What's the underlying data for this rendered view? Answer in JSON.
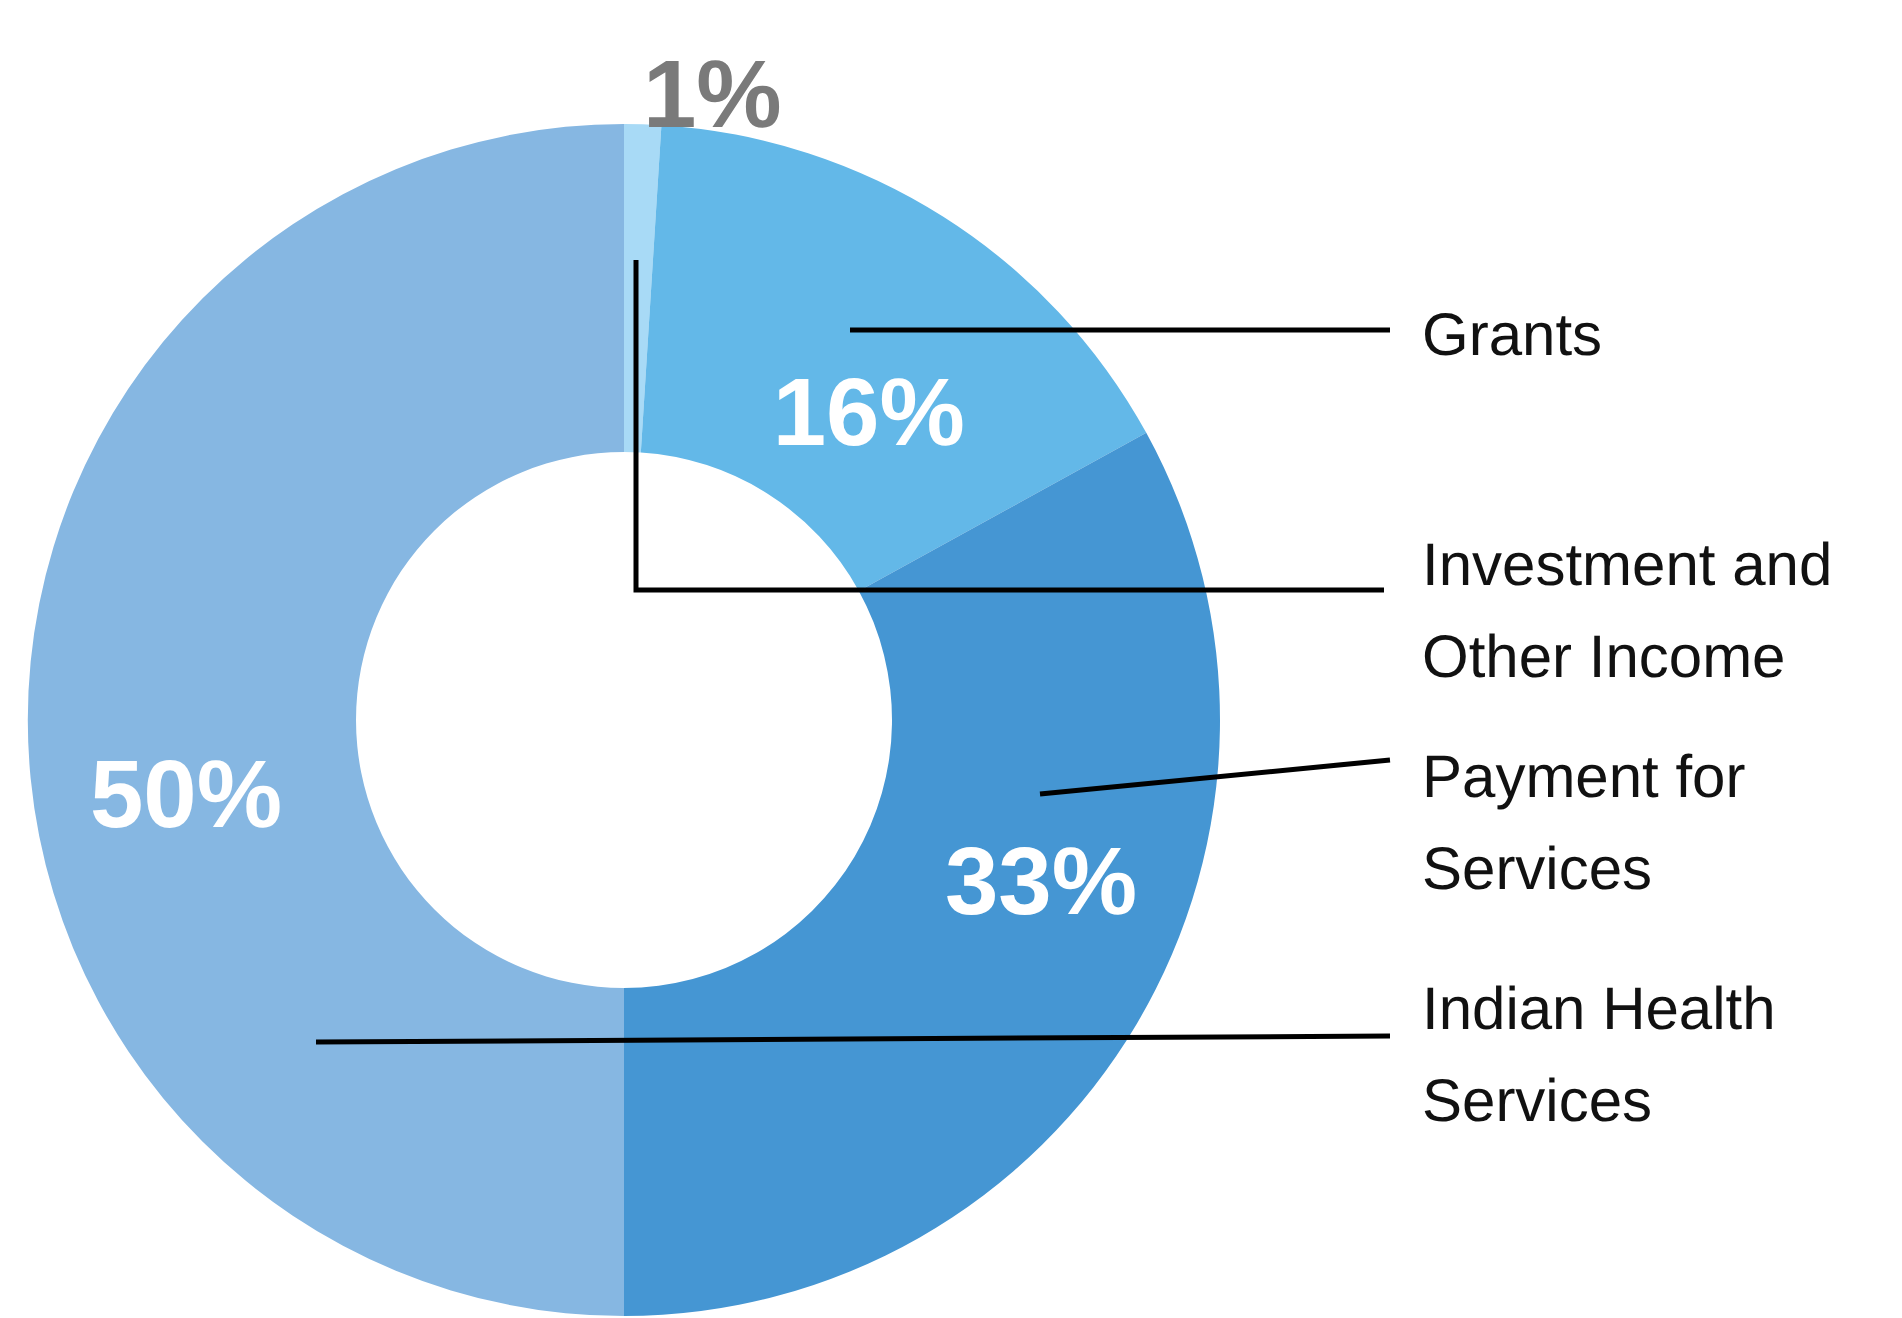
{
  "chart_data": {
    "type": "donut",
    "categories": [
      "Investment and Other Income",
      "Grants",
      "Payment for Services",
      "Indian Health Services"
    ],
    "values": [
      1,
      16,
      33,
      50
    ],
    "colors": [
      "#a8daf6",
      "#63b8e8",
      "#4596d3",
      "#86b7e2"
    ],
    "value_labels": [
      "1%",
      "16%",
      "33%",
      "50%"
    ],
    "legend": false
  }
}
